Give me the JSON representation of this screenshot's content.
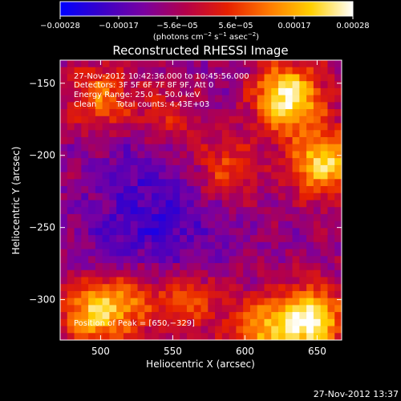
{
  "chart_data": {
    "type": "heatmap",
    "title": "Reconstructed RHESSI Image",
    "xlabel": "Heliocentric X (arcsec)",
    "ylabel": "Heliocentric Y (arcsec)",
    "xlim": [
      472,
      667
    ],
    "ylim": [
      -328,
      -134
    ],
    "xticks": [
      500,
      550,
      600,
      650
    ],
    "yticks": [
      -150,
      -200,
      -250,
      -300
    ],
    "xtick_labels": [
      "500",
      "550",
      "600",
      "650"
    ],
    "ytick_labels": [
      "−150",
      "−200",
      "−250",
      "−300"
    ],
    "colorbar": {
      "range": [
        -0.00028,
        0.00028
      ],
      "tick_labels": [
        "−0.00028",
        "−0.00017",
        "−5.6e−05",
        "5.6e−05",
        "0.00017",
        "0.00028"
      ],
      "unit_main": "(photons cm",
      "unit_sup1": "−2",
      "unit_mid": " s",
      "unit_sup2": "−1",
      "unit_mid2": " asec",
      "unit_sup3": "−2",
      "unit_end": ")",
      "colors": [
        "#0000ff",
        "#3a00c8",
        "#7a00a0",
        "#b4004a",
        "#e62000",
        "#ff7a00",
        "#ffd000",
        "#ffffff"
      ]
    },
    "annotations": {
      "time": "27-Nov-2012 10:42:36.000 to 10:45:56.000",
      "detectors": "Detectors: 3F 5F 6F 7F 8F 9F, Att 0",
      "energy": "Energy Range: 25.0 − 50.0 keV",
      "method": "Clean",
      "counts": "Total counts: 4.43E+03",
      "peak": "Position of Peak = [650,−329]"
    },
    "hot_sources": [
      {
        "x": 630,
        "y": -160,
        "level": 1.0
      },
      {
        "x": 655,
        "y": -205,
        "level": 0.85
      },
      {
        "x": 645,
        "y": -315,
        "level": 1.0
      },
      {
        "x": 610,
        "y": -320,
        "level": 0.6
      },
      {
        "x": 500,
        "y": -160,
        "level": 0.55
      },
      {
        "x": 495,
        "y": -310,
        "level": 0.75
      },
      {
        "x": 520,
        "y": -300,
        "level": 0.45
      },
      {
        "x": 545,
        "y": -175,
        "level": 0.35
      },
      {
        "x": 585,
        "y": -210,
        "level": 0.45
      },
      {
        "x": 560,
        "y": -300,
        "level": 0.4
      }
    ],
    "cold_sources": [
      {
        "x": 520,
        "y": -260,
        "level": 0.9
      },
      {
        "x": 555,
        "y": -240,
        "level": 0.8
      },
      {
        "x": 530,
        "y": -200,
        "level": 0.6
      }
    ]
  },
  "footer": {
    "timestamp": "27-Nov-2012 13:37"
  }
}
